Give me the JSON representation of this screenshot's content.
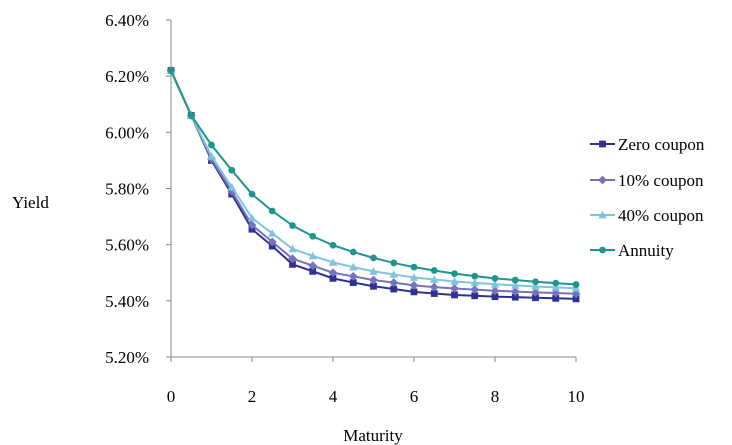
{
  "chart_data": {
    "type": "line",
    "title": "",
    "xlabel": "Maturity",
    "ylabel": "Yield",
    "xlim": [
      0,
      10
    ],
    "ylim": [
      5.2,
      6.4
    ],
    "x_ticks": [
      0,
      2,
      4,
      6,
      8,
      10
    ],
    "x_tick_labels": [
      "0",
      "2",
      "4",
      "6",
      "8",
      "10"
    ],
    "y_ticks": [
      5.2,
      5.4,
      5.6,
      5.8,
      6.0,
      6.2,
      6.4
    ],
    "y_tick_labels": [
      "5.20%",
      "5.40%",
      "5.60%",
      "5.80%",
      "6.00%",
      "6.20%",
      "6.40%"
    ],
    "grid": false,
    "legend_position": "right",
    "x": [
      0,
      0.5,
      1,
      1.5,
      2,
      2.5,
      3,
      3.5,
      4,
      4.5,
      5,
      5.5,
      6,
      6.5,
      7,
      7.5,
      8,
      8.5,
      9,
      9.5,
      10
    ],
    "series": [
      {
        "name": "Zero coupon",
        "color": "#2e3192",
        "marker": "square",
        "values": [
          6.22,
          6.06,
          5.9,
          5.78,
          5.655,
          5.595,
          5.53,
          5.505,
          5.48,
          5.465,
          5.452,
          5.442,
          5.432,
          5.426,
          5.421,
          5.418,
          5.415,
          5.413,
          5.411,
          5.409,
          5.407
        ]
      },
      {
        "name": "10% coupon",
        "color": "#7473be",
        "marker": "diamond",
        "values": [
          6.22,
          6.06,
          5.905,
          5.79,
          5.67,
          5.61,
          5.55,
          5.525,
          5.5,
          5.487,
          5.474,
          5.465,
          5.455,
          5.449,
          5.444,
          5.44,
          5.436,
          5.433,
          5.43,
          5.428,
          5.425
        ]
      },
      {
        "name": "40% coupon",
        "color": "#80c4dc",
        "marker": "triangle",
        "values": [
          6.22,
          6.06,
          5.915,
          5.805,
          5.695,
          5.64,
          5.585,
          5.56,
          5.537,
          5.52,
          5.505,
          5.494,
          5.483,
          5.476,
          5.469,
          5.464,
          5.459,
          5.455,
          5.451,
          5.448,
          5.445
        ]
      },
      {
        "name": "Annuity",
        "color": "#1e958e",
        "marker": "circle",
        "values": [
          6.22,
          6.06,
          5.955,
          5.865,
          5.78,
          5.72,
          5.668,
          5.63,
          5.598,
          5.574,
          5.553,
          5.535,
          5.52,
          5.508,
          5.497,
          5.488,
          5.48,
          5.474,
          5.468,
          5.463,
          5.458
        ]
      }
    ]
  }
}
